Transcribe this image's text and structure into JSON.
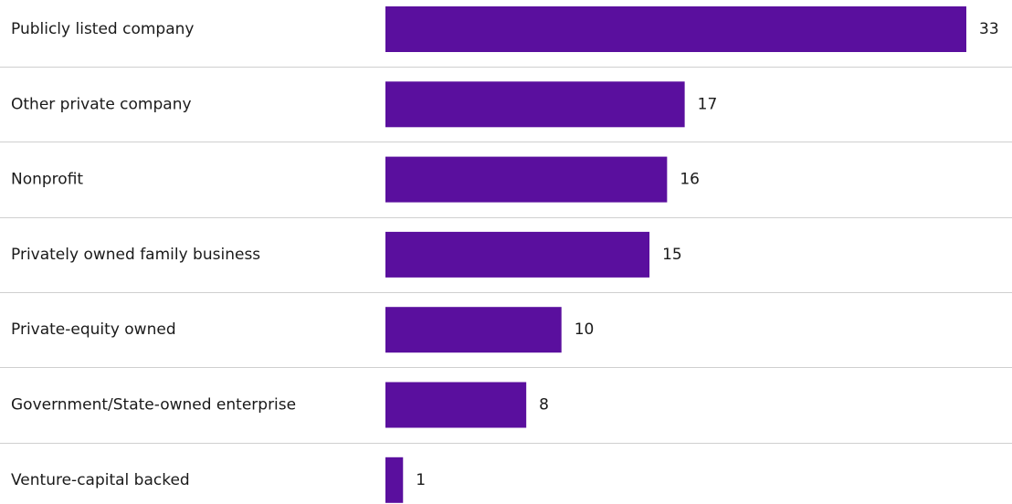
{
  "chart_data": {
    "type": "bar",
    "orientation": "horizontal",
    "categories": [
      "Publicly listed company",
      "Other private company",
      "Nonprofit",
      "Privately owned family business",
      "Private-equity owned",
      "Government/State-owned enterprise",
      "Venture-capital backed"
    ],
    "values": [
      33,
      17,
      16,
      15,
      10,
      8,
      1
    ],
    "value_labels": [
      "33",
      "17",
      "16",
      "15",
      "10",
      "8",
      "1"
    ],
    "bar_color": "#5a0f9e",
    "separator_color": "#cfcfcf",
    "grid": false,
    "legend": "none",
    "xlim": [
      0,
      33
    ]
  }
}
